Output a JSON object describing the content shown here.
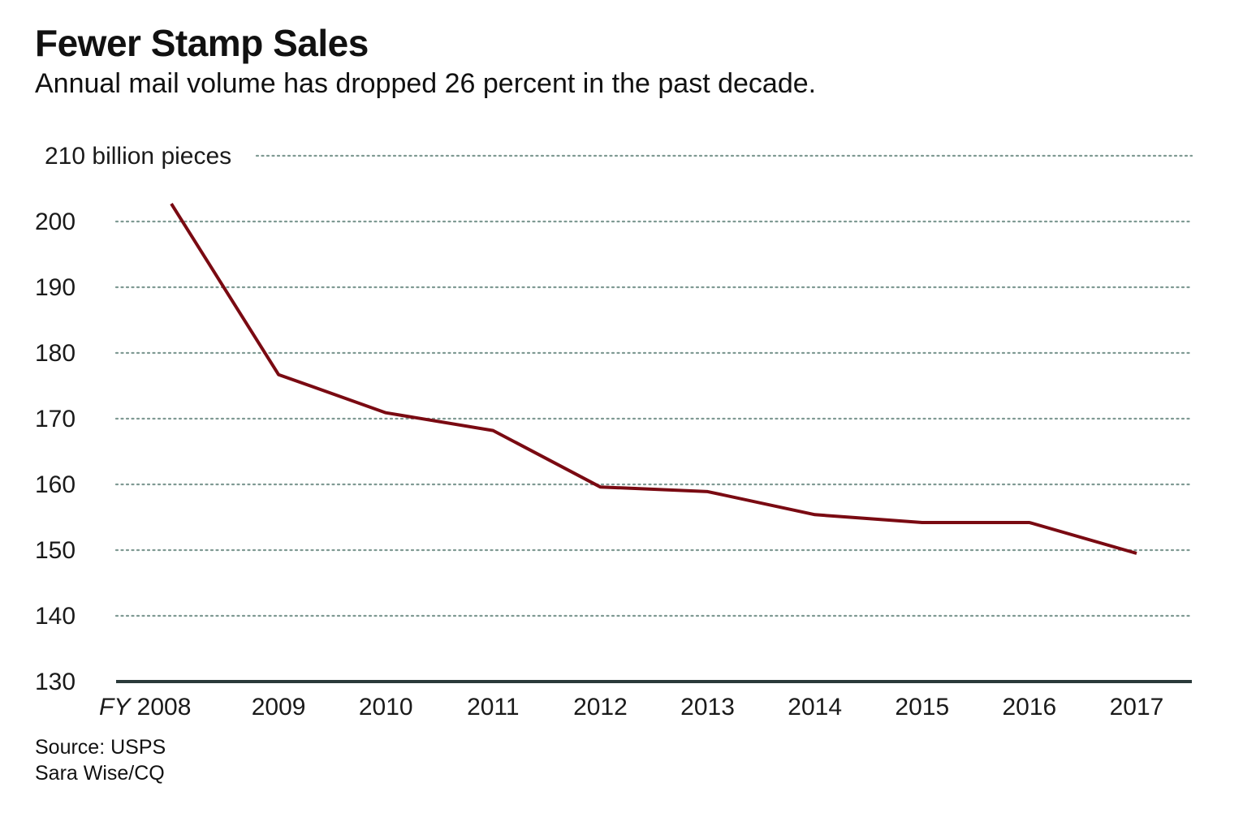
{
  "header": {
    "title": "Fewer Stamp Sales",
    "subtitle": "Annual mail volume has dropped 26 percent in the past decade."
  },
  "footer": {
    "source": "Source: USPS",
    "credit": "Sara Wise/CQ"
  },
  "colors": {
    "line": "#7a0a12",
    "grid": "#7f9a93",
    "axis": "#2b3a3a"
  },
  "chart_data": {
    "type": "line",
    "title": "Fewer Stamp Sales",
    "subtitle": "Annual mail volume has dropped 26 percent in the past decade.",
    "x": [
      "2008",
      "2009",
      "2010",
      "2011",
      "2012",
      "2013",
      "2014",
      "2015",
      "2016",
      "2017"
    ],
    "x_tick_labels": [
      "FY 2008",
      "2009",
      "2010",
      "2011",
      "2012",
      "2013",
      "2014",
      "2015",
      "2016",
      "2017"
    ],
    "x_first_prefix": "FY",
    "y_ticks": [
      130,
      140,
      150,
      160,
      170,
      180,
      190,
      200,
      210
    ],
    "y_tick_labels": [
      "130",
      "140",
      "150",
      "160",
      "170",
      "180",
      "190",
      "200",
      "210 billion pieces"
    ],
    "ylim": [
      130,
      210
    ],
    "grid": true,
    "series": [
      {
        "values": [
          202.7,
          176.7,
          170.9,
          168.2,
          159.6,
          158.9,
          155.4,
          154.2,
          154.2,
          149.5
        ]
      }
    ]
  }
}
